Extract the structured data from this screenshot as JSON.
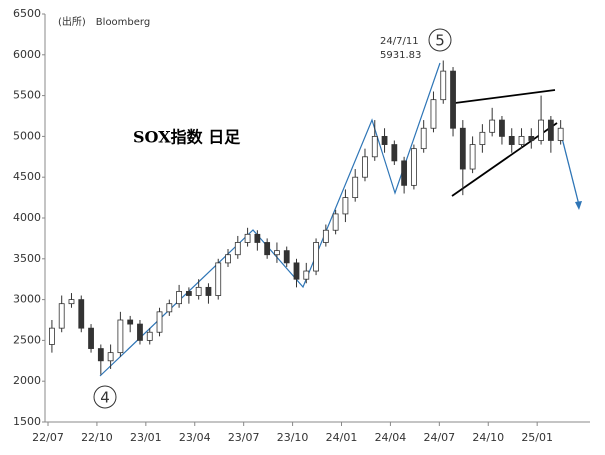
{
  "chart_data": {
    "type": "candlestick",
    "title": "SOX指数 日足",
    "source": "(出所)　Bloomberg",
    "annotations": [
      {
        "date": "24/7/11",
        "value_label": "5931.83"
      }
    ],
    "wave_labels": [
      "4",
      "5"
    ],
    "x": [
      2022.52,
      2022.57,
      2022.62,
      2022.67,
      2022.72,
      2022.77,
      2022.82,
      2022.87,
      2022.92,
      2022.97,
      2023.02,
      2023.07,
      2023.12,
      2023.17,
      2023.22,
      2023.27,
      2023.32,
      2023.37,
      2023.42,
      2023.47,
      2023.52,
      2023.57,
      2023.62,
      2023.67,
      2023.72,
      2023.77,
      2023.82,
      2023.87,
      2023.92,
      2023.97,
      2024.02,
      2024.07,
      2024.12,
      2024.17,
      2024.22,
      2024.27,
      2024.32,
      2024.37,
      2024.42,
      2024.47,
      2024.52,
      2024.57,
      2024.62,
      2024.67,
      2024.72,
      2024.77,
      2024.82,
      2024.87,
      2024.92,
      2024.97,
      2025.02,
      2025.07,
      2025.12
    ],
    "open": [
      2450,
      2650,
      2950,
      3000,
      2650,
      2400,
      2250,
      2350,
      2750,
      2700,
      2500,
      2600,
      2850,
      2950,
      3100,
      3050,
      3150,
      3050,
      3450,
      3550,
      3700,
      3800,
      3700,
      3550,
      3600,
      3450,
      3250,
      3350,
      3700,
      3850,
      4050,
      4250,
      4500,
      4750,
      5000,
      4900,
      4700,
      4400,
      4850,
      5100,
      5450,
      5800,
      5100,
      4600,
      4900,
      5050,
      5200,
      5000,
      4900,
      5000,
      4950,
      5200,
      4950
    ],
    "high": [
      2750,
      3050,
      3080,
      3050,
      2700,
      2450,
      2450,
      2850,
      2800,
      2750,
      2650,
      2900,
      3000,
      3180,
      3150,
      3250,
      3200,
      3500,
      3620,
      3780,
      3880,
      3850,
      3750,
      3700,
      3650,
      3500,
      3450,
      3750,
      3920,
      4100,
      4350,
      4600,
      4850,
      5200,
      5100,
      4950,
      4750,
      4900,
      5200,
      5550,
      5930,
      5850,
      5200,
      5000,
      5150,
      5350,
      5250,
      5100,
      5100,
      5100,
      5500,
      5250,
      5200
    ],
    "low": [
      2350,
      2600,
      2900,
      2600,
      2350,
      2080,
      2150,
      2300,
      2600,
      2450,
      2450,
      2550,
      2800,
      2900,
      2950,
      3000,
      2950,
      3000,
      3400,
      3500,
      3650,
      3600,
      3500,
      3450,
      3400,
      3150,
      3200,
      3300,
      3650,
      3800,
      3950,
      4200,
      4450,
      4700,
      4800,
      4650,
      4300,
      4350,
      4800,
      5050,
      5400,
      5000,
      4280,
      4550,
      4800,
      5000,
      4900,
      4800,
      4850,
      4850,
      4900,
      4800,
      4900
    ],
    "close": [
      2650,
      2950,
      3000,
      2650,
      2400,
      2250,
      2350,
      2750,
      2700,
      2500,
      2600,
      2850,
      2950,
      3100,
      3050,
      3150,
      3050,
      3450,
      3550,
      3700,
      3800,
      3700,
      3550,
      3600,
      3450,
      3250,
      3350,
      3700,
      3850,
      4050,
      4250,
      4500,
      4750,
      5000,
      4900,
      4700,
      4400,
      4850,
      5100,
      5450,
      5800,
      5100,
      4600,
      4900,
      5050,
      5200,
      5000,
      4900,
      5000,
      4950,
      5200,
      4950,
      5100
    ],
    "color": "#333333",
    "xlim": [
      2022.5,
      2025.27
    ],
    "xticks": [
      {
        "value": 2022.5,
        "label": "22/07"
      },
      {
        "value": 2022.75,
        "label": "22/10"
      },
      {
        "value": 2023.0,
        "label": "23/01"
      },
      {
        "value": 2023.25,
        "label": "23/04"
      },
      {
        "value": 2023.5,
        "label": "23/07"
      },
      {
        "value": 2023.75,
        "label": "23/10"
      },
      {
        "value": 2024.0,
        "label": "24/01"
      },
      {
        "value": 2024.25,
        "label": "24/04"
      },
      {
        "value": 2024.5,
        "label": "24/07"
      },
      {
        "value": 2024.75,
        "label": "24/10"
      },
      {
        "value": 2025.0,
        "label": "25/01"
      }
    ],
    "ylim": [
      1500,
      6500
    ],
    "yticks": [
      1500,
      2000,
      2500,
      3000,
      3500,
      4000,
      4500,
      5000,
      5500,
      6000,
      6500
    ]
  }
}
